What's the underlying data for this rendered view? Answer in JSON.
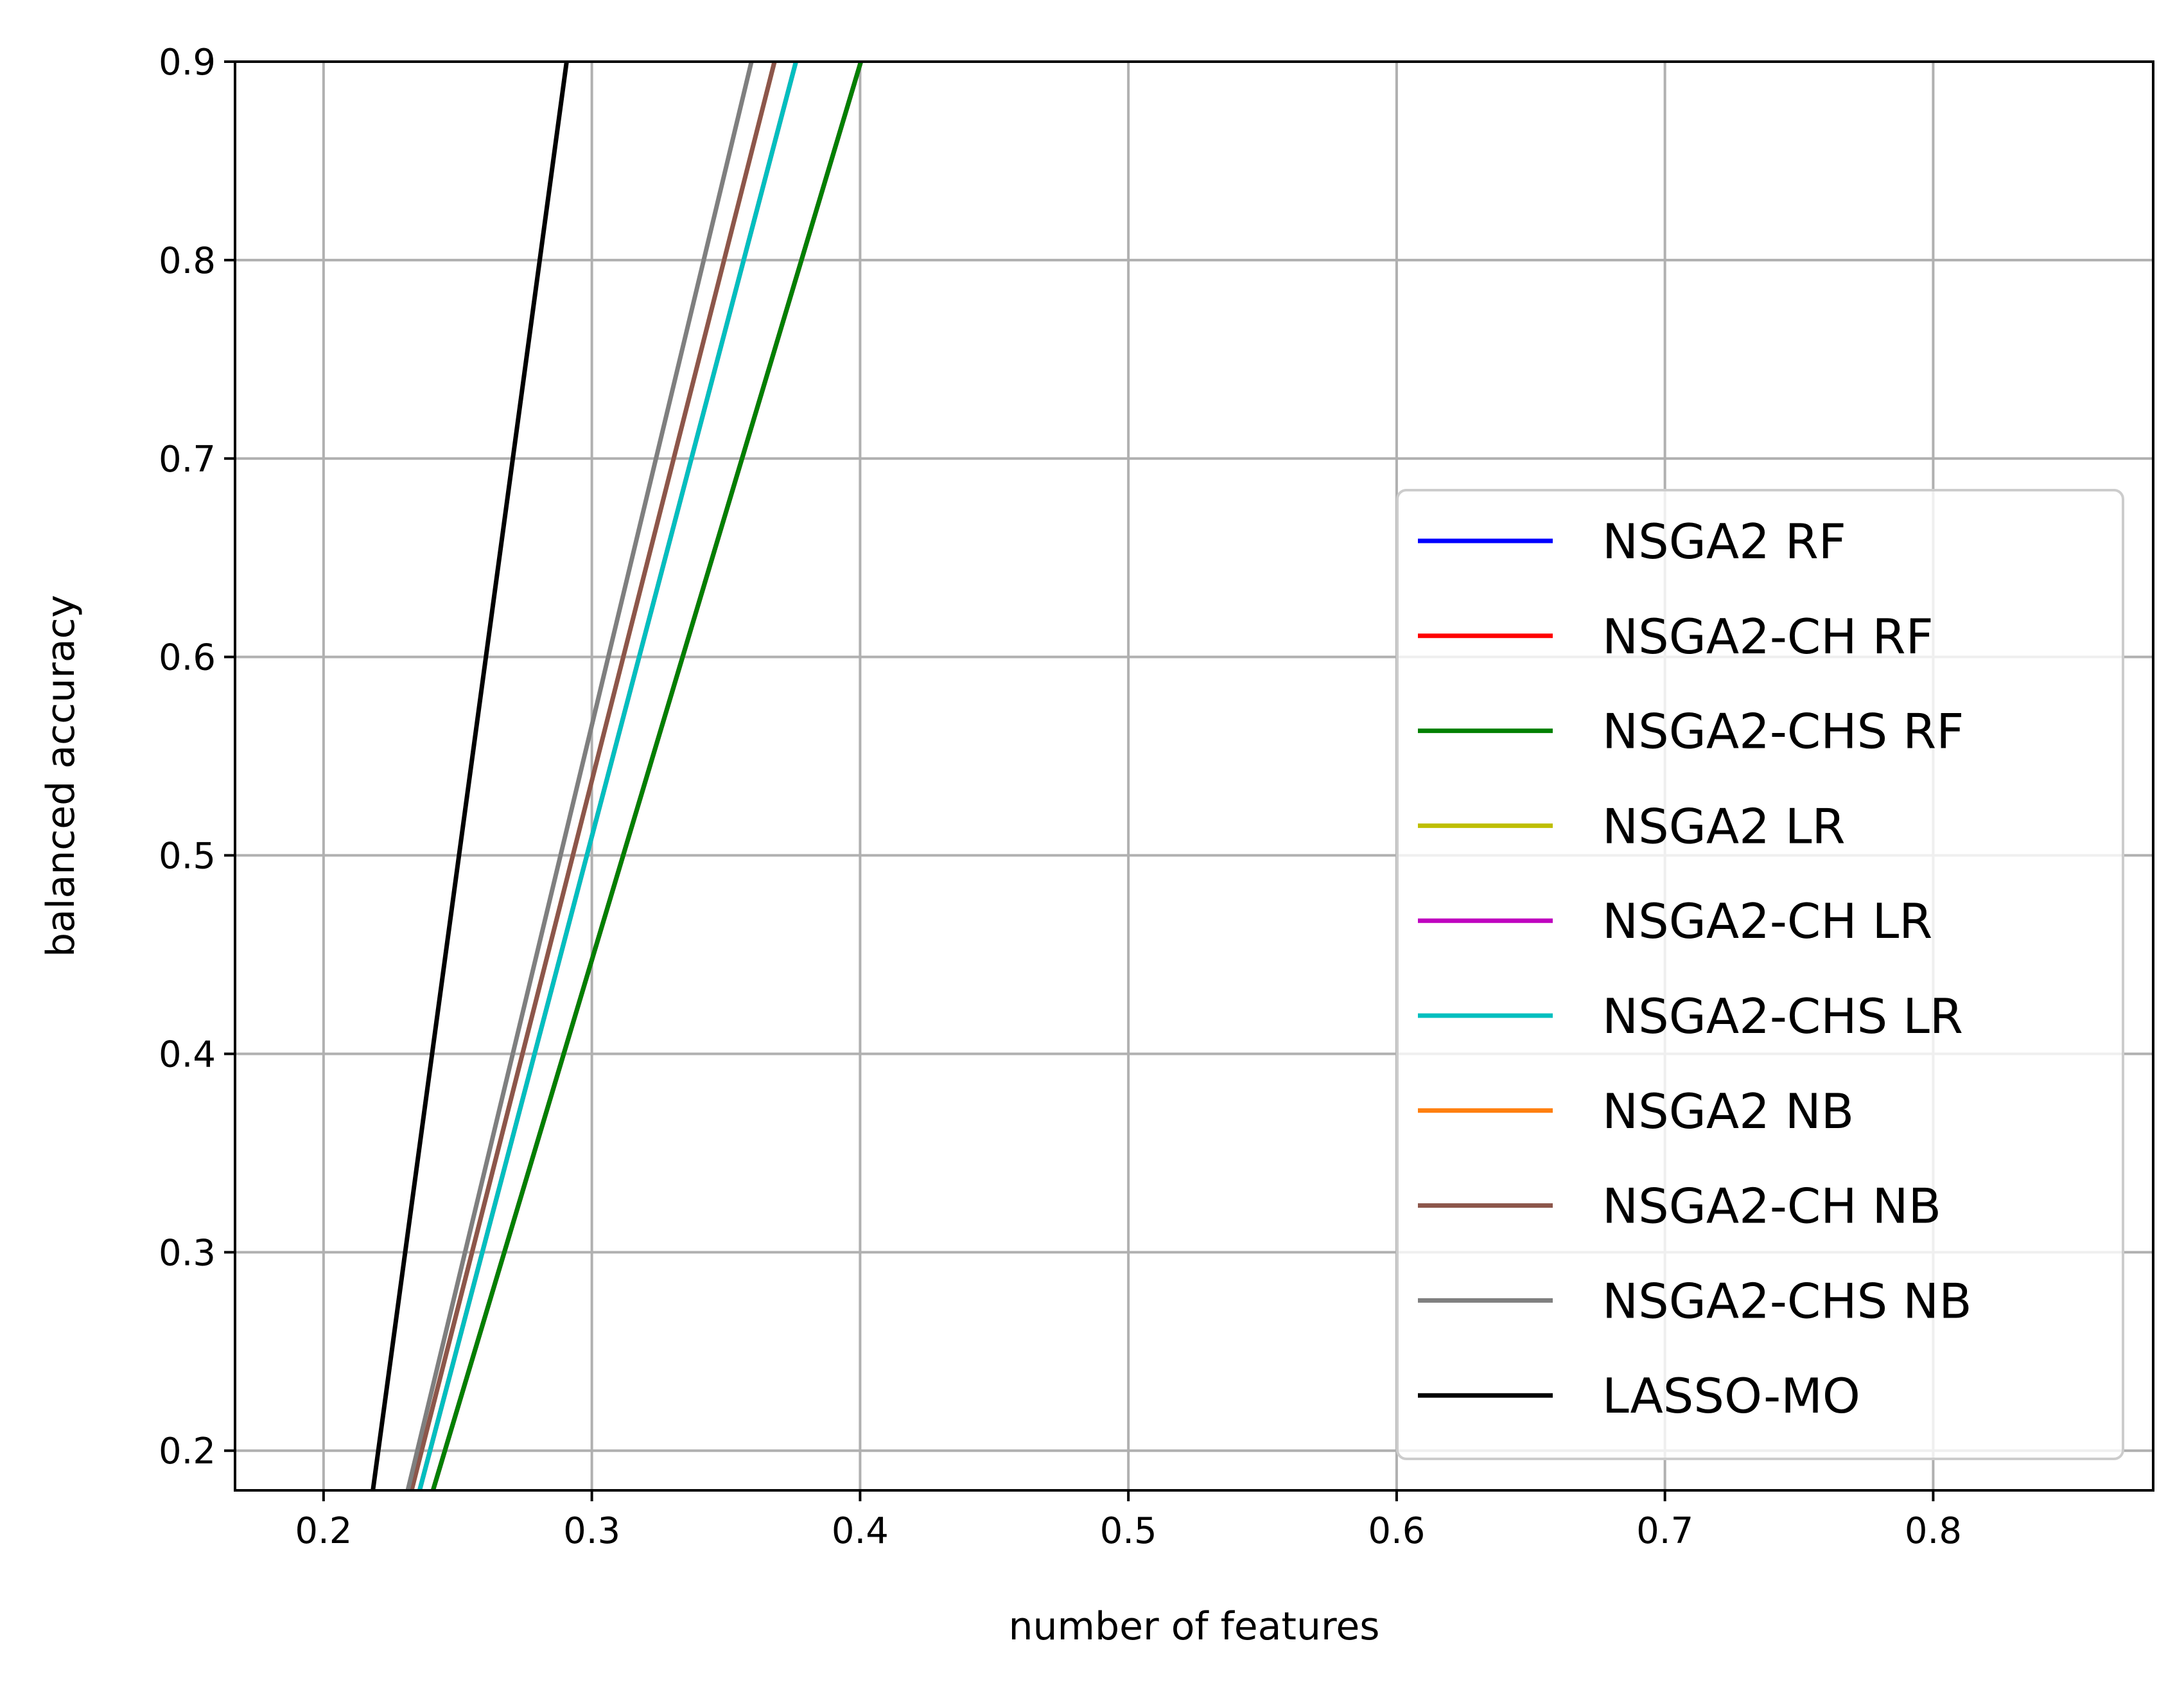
{
  "chart_data": {
    "type": "line",
    "title": "",
    "xlabel": "number of features",
    "ylabel": "balanced accuracy",
    "xlim": [
      0.167,
      0.882
    ],
    "ylim": [
      0.18,
      0.9
    ],
    "xticks": [
      "0.2",
      "0.3",
      "0.4",
      "0.5",
      "0.6",
      "0.7",
      "0.8"
    ],
    "yticks": [
      "0.2",
      "0.3",
      "0.4",
      "0.5",
      "0.6",
      "0.7",
      "0.8",
      "0.9"
    ],
    "grid": true,
    "legend_position": "lower-right",
    "series": [
      {
        "name": "NSGA2 RF",
        "color": "#0000ff",
        "x": [
          0.2408,
          0.4003
        ],
        "y": [
          0.18,
          0.9
        ]
      },
      {
        "name": "NSGA2-CH RF",
        "color": "#ff0000",
        "x": [
          0.2408,
          0.4003
        ],
        "y": [
          0.18,
          0.9
        ]
      },
      {
        "name": "NSGA2-CHS RF",
        "color": "#008000",
        "x": [
          0.2408,
          0.4003
        ],
        "y": [
          0.18,
          0.9
        ]
      },
      {
        "name": "NSGA2 LR",
        "color": "#bfbf00",
        "x": [
          0.2358,
          0.3761
        ],
        "y": [
          0.18,
          0.9
        ]
      },
      {
        "name": "NSGA2-CH LR",
        "color": "#bf00bf",
        "x": [
          0.2358,
          0.3761
        ],
        "y": [
          0.18,
          0.9
        ]
      },
      {
        "name": "NSGA2-CHS LR",
        "color": "#00bfbf",
        "x": [
          0.2358,
          0.3761
        ],
        "y": [
          0.18,
          0.9
        ]
      },
      {
        "name": "NSGA2 NB",
        "color": "#ff7f0e",
        "x": [
          0.2328,
          0.3681
        ],
        "y": [
          0.18,
          0.9
        ]
      },
      {
        "name": "NSGA2-CH NB",
        "color": "#8c564b",
        "x": [
          0.2328,
          0.3681
        ],
        "y": [
          0.18,
          0.9
        ]
      },
      {
        "name": "NSGA2-CHS NB",
        "color": "#7f7f7f",
        "x": [
          0.2314,
          0.3595
        ],
        "y": [
          0.18,
          0.9
        ]
      },
      {
        "name": "LASSO-MO",
        "color": "#000000",
        "x": [
          0.2184,
          0.2906
        ],
        "y": [
          0.18,
          0.9
        ]
      }
    ]
  }
}
